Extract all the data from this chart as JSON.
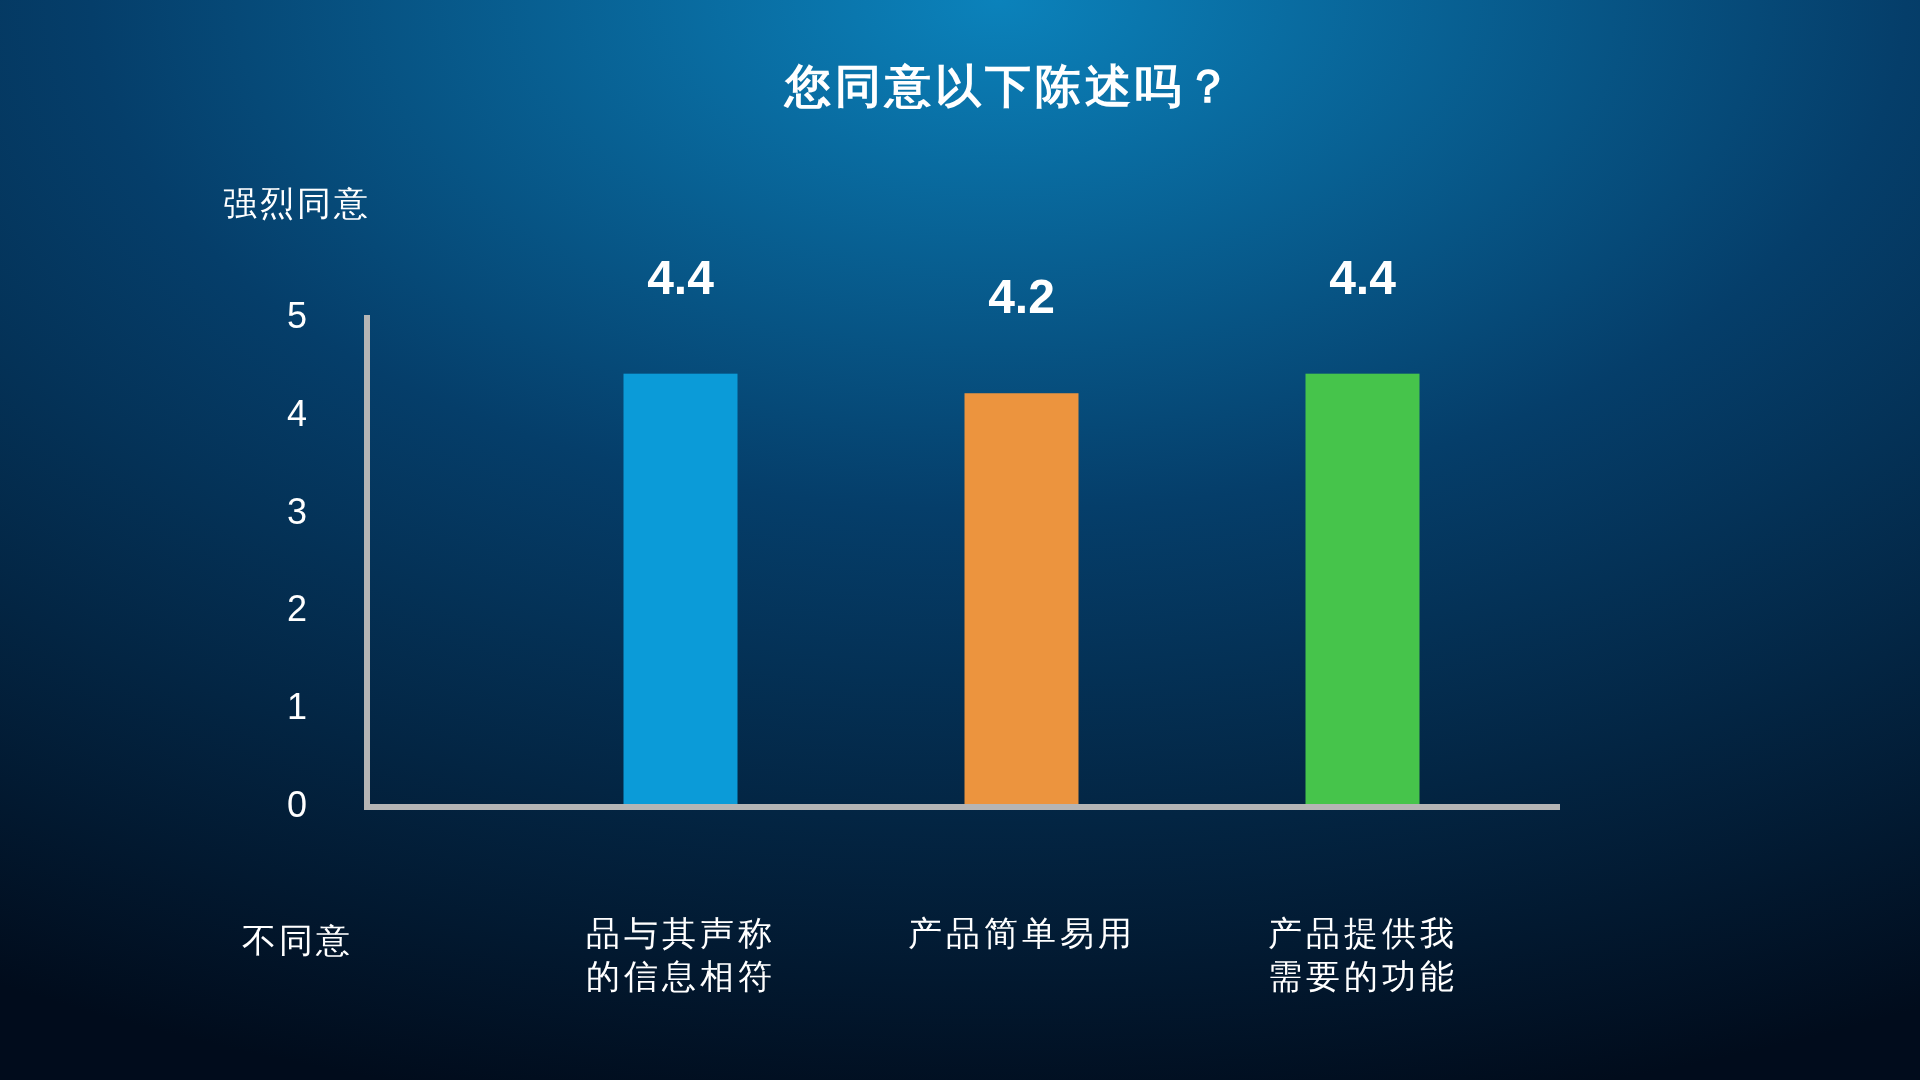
{
  "chart_data": {
    "type": "bar",
    "title": "您同意以下陈述吗？",
    "categories": [
      "品与其声称的信息相符",
      "产品简单易用",
      "产品提供我需要的功能"
    ],
    "values": [
      4.4,
      4.2,
      4.4
    ],
    "colors": [
      "#0b9bd8",
      "#ec943e",
      "#46c44b"
    ],
    "ylim": [
      0,
      5
    ],
    "yticks": [
      0,
      1,
      2,
      3,
      4,
      5
    ],
    "data_labels": true,
    "annotations": [
      "强烈同意",
      "不同意"
    ]
  }
}
